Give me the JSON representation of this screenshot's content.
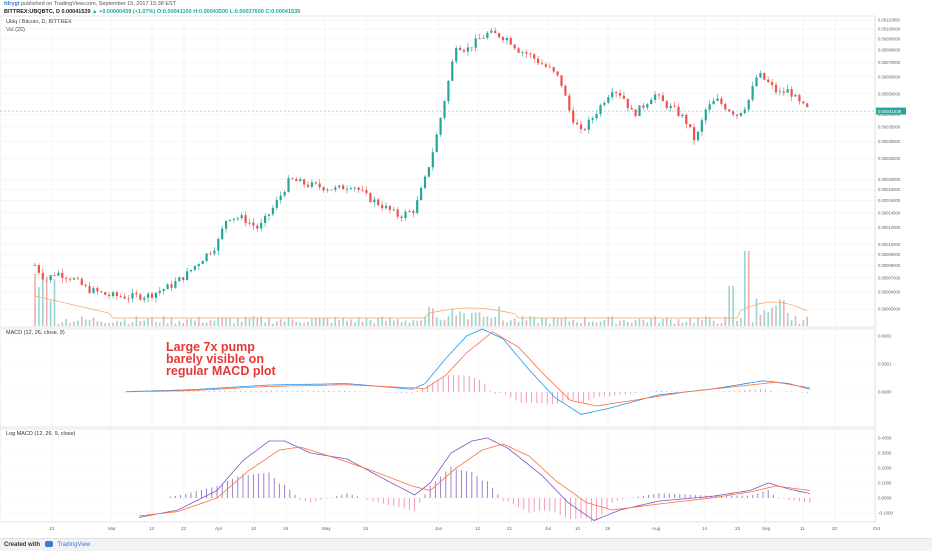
{
  "header": {
    "author": "fdrygt",
    "published": "published on TradingView.com, September 15, 2017 15:38 EST",
    "ticker_line": "BITTREX:UBQBTC, D  0.00041539",
    "change": "▲ +0.00000439 (+1.07%)",
    "ohlc": "O:0.00041100 H:0.00043500 L:0.00037600 C:0.00041539"
  },
  "panels": {
    "price_title": "Ubiq / Bitcoin, D, BITTREX",
    "volume_title": "Vol (20)",
    "macd_title": "MACD (12, 26, close, 9)",
    "logmacd_title": "Log MACD (12, 26, 9, close)"
  },
  "annotation": {
    "lines": [
      "Large 7x pump",
      "barely visible on",
      "regular MACD plot"
    ],
    "color": "#e53935"
  },
  "footer": {
    "created_with": "Created with",
    "brand": "TradingView"
  },
  "colors": {
    "up": "#26a69a",
    "down": "#ef5350",
    "macd": "#2196f3",
    "signal": "#ff7043",
    "hist_pos": "#e88fb0",
    "hist_neg": "#f48fb1",
    "log_macd": "#7e57c2",
    "log_hist": "#9575cd",
    "vol_ma": "#f4a46a"
  },
  "chart_data": [
    {
      "type": "candlestick",
      "title": "Ubiq / Bitcoin, D, BITTREX",
      "x_ticks": [
        "13",
        "Mar",
        "13",
        "22",
        "Apr",
        "10",
        "19",
        "May",
        "15",
        "Jun",
        "12",
        "21",
        "Jul",
        "10",
        "19",
        "Aug",
        "14",
        "23",
        "Sep",
        "11",
        "20",
        "Oct"
      ],
      "y_ticks": [
        "0.00110000",
        "0.00100000",
        "0.00090000",
        "0.00080000",
        "0.00070000",
        "0.00060000",
        "0.00050000",
        "0.00040000",
        "0.00035000",
        "0.00030000",
        "0.00025000",
        "0.00020000",
        "0.00018000",
        "0.00016000",
        "0.00014000",
        "0.00012000",
        "0.00010000",
        "0.00009000",
        "0.00008000",
        "0.00007000",
        "0.00006000",
        "0.00005000"
      ],
      "last_price": "0.00041539",
      "log_scale": true,
      "close_series": [
        {
          "d": 0,
          "c": 8e-05
        },
        {
          "d": 4,
          "c": 6.8e-05
        },
        {
          "d": 8,
          "c": 7.4e-05
        },
        {
          "d": 14,
          "c": 7e-05
        },
        {
          "d": 20,
          "c": 6.2e-05
        },
        {
          "d": 28,
          "c": 5.8e-05
        },
        {
          "d": 36,
          "c": 5.7e-05
        },
        {
          "d": 44,
          "c": 5.8e-05
        },
        {
          "d": 52,
          "c": 6.4e-05
        },
        {
          "d": 58,
          "c": 7.2e-05
        },
        {
          "d": 64,
          "c": 8.5e-05
        },
        {
          "d": 70,
          "c": 0.0001
        },
        {
          "d": 74,
          "c": 0.000135
        },
        {
          "d": 80,
          "c": 0.000132
        },
        {
          "d": 86,
          "c": 0.000118
        },
        {
          "d": 92,
          "c": 0.00015
        },
        {
          "d": 98,
          "c": 0.0002
        },
        {
          "d": 104,
          "c": 0.00019
        },
        {
          "d": 110,
          "c": 0.000185
        },
        {
          "d": 116,
          "c": 0.00018
        },
        {
          "d": 122,
          "c": 0.00019
        },
        {
          "d": 128,
          "c": 0.000165
        },
        {
          "d": 134,
          "c": 0.00015
        },
        {
          "d": 140,
          "c": 0.000135
        },
        {
          "d": 146,
          "c": 0.000145
        },
        {
          "d": 150,
          "c": 0.0002
        },
        {
          "d": 154,
          "c": 0.0003
        },
        {
          "d": 158,
          "c": 0.0005
        },
        {
          "d": 162,
          "c": 0.00085
        },
        {
          "d": 166,
          "c": 0.0008
        },
        {
          "d": 170,
          "c": 0.00088
        },
        {
          "d": 174,
          "c": 0.00095
        },
        {
          "d": 178,
          "c": 0.00094
        },
        {
          "d": 182,
          "c": 0.0009
        },
        {
          "d": 186,
          "c": 0.0008
        },
        {
          "d": 190,
          "c": 0.00076
        },
        {
          "d": 194,
          "c": 0.0007
        },
        {
          "d": 198,
          "c": 0.00065
        },
        {
          "d": 202,
          "c": 0.00058
        },
        {
          "d": 206,
          "c": 0.0004
        },
        {
          "d": 210,
          "c": 0.00033
        },
        {
          "d": 214,
          "c": 0.00038
        },
        {
          "d": 218,
          "c": 0.00045
        },
        {
          "d": 222,
          "c": 0.00053
        },
        {
          "d": 226,
          "c": 0.00049
        },
        {
          "d": 230,
          "c": 0.0004
        },
        {
          "d": 234,
          "c": 0.00044
        },
        {
          "d": 238,
          "c": 0.0005
        },
        {
          "d": 242,
          "c": 0.00045
        },
        {
          "d": 246,
          "c": 0.00042
        },
        {
          "d": 250,
          "c": 0.00038
        },
        {
          "d": 254,
          "c": 0.0003
        },
        {
          "d": 258,
          "c": 0.00042
        },
        {
          "d": 262,
          "c": 0.00047
        },
        {
          "d": 266,
          "c": 0.00043
        },
        {
          "d": 270,
          "c": 0.0004
        },
        {
          "d": 274,
          "c": 0.00045
        },
        {
          "d": 278,
          "c": 0.00062
        },
        {
          "d": 282,
          "c": 0.00056
        },
        {
          "d": 286,
          "c": 0.0005
        },
        {
          "d": 290,
          "c": 0.00052
        },
        {
          "d": 294,
          "c": 0.00045
        },
        {
          "d": 298,
          "c": 0.000415
        }
      ]
    },
    {
      "type": "line",
      "title": "MACD (12, 26, close, 9)",
      "y_ticks": [
        "0.0002",
        "0.0001",
        "0.0000"
      ],
      "series": [
        "MACD",
        "Signal",
        "Histogram"
      ]
    },
    {
      "type": "line",
      "title": "Log MACD (12, 26, 9, close)",
      "y_ticks": [
        "0.4000",
        "0.3000",
        "0.2000",
        "0.1000",
        "0.0000",
        "-0.1000"
      ],
      "series": [
        "Log MACD",
        "Signal",
        "Histogram"
      ]
    }
  ]
}
